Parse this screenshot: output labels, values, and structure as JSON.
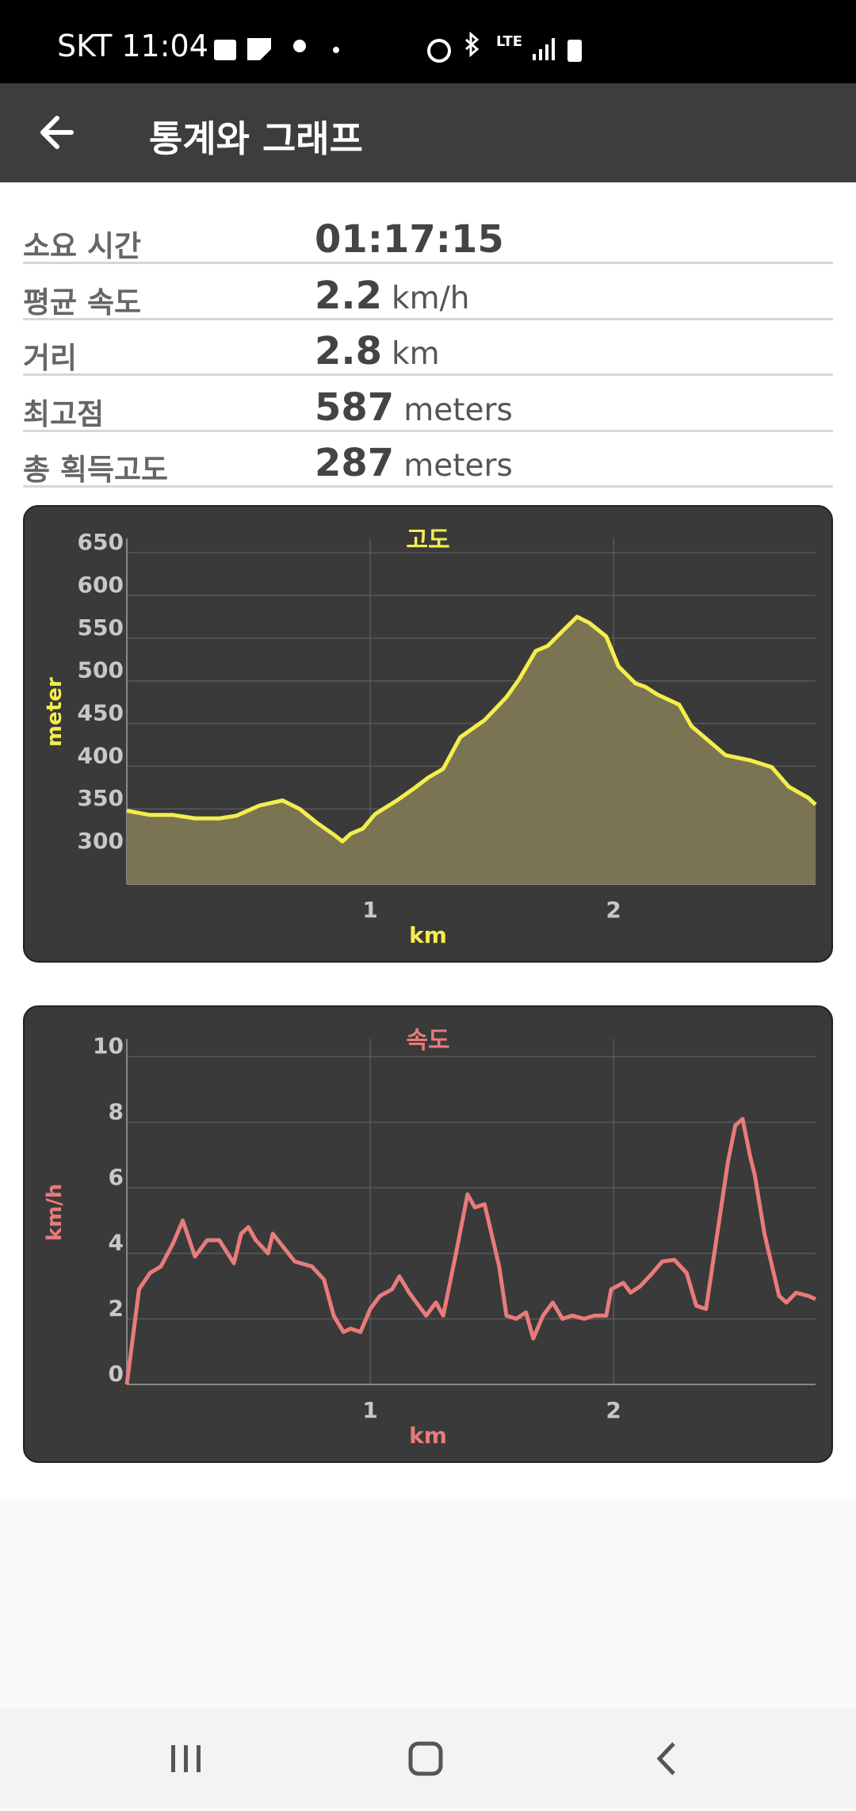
{
  "status_bar": {
    "carrier_time": "SKT 11:04",
    "network": "LTE"
  },
  "header": {
    "title": "통계와 그래프"
  },
  "stats": [
    {
      "label": "소요 시간",
      "value": "01:17:15"
    },
    {
      "label": "평균 속도",
      "value": 2.2,
      "unit": "km/h"
    },
    {
      "label": "거리",
      "value": 2.8,
      "unit": "km"
    },
    {
      "label": "최고점",
      "value": 587,
      "unit": "meters"
    },
    {
      "label": "총 획득고도",
      "value": 287,
      "unit": "meters"
    }
  ],
  "chart_data": [
    {
      "type": "area",
      "title": "고도",
      "x_label": "km",
      "y_label": "meter",
      "color": "#f4ee4c",
      "fill_color": "#7b7452",
      "grid": true,
      "x": [
        0,
        0.095,
        0.19,
        0.28,
        0.38,
        0.45,
        0.545,
        0.64,
        0.71,
        0.78,
        0.85,
        0.886,
        0.92,
        0.97,
        1.02,
        1.11,
        1.18,
        1.24,
        1.3,
        1.37,
        1.47,
        1.56,
        1.61,
        1.68,
        1.73,
        1.8,
        1.85,
        1.9,
        1.97,
        2.02,
        2.09,
        2.13,
        2.18,
        2.27,
        2.32,
        2.39,
        2.46,
        2.56,
        2.65,
        2.72,
        2.8,
        2.83
      ],
      "values": [
        348,
        343,
        343,
        339,
        339,
        342,
        354,
        360,
        350,
        334,
        320,
        312,
        321,
        327,
        344,
        360,
        374,
        387,
        397,
        434,
        454,
        481,
        501,
        535,
        541,
        561,
        575,
        568,
        552,
        517,
        497,
        493,
        484,
        472,
        447,
        430,
        413,
        407,
        399,
        376,
        363,
        355
      ],
      "xlim": [
        0,
        2.83
      ],
      "xticks": [
        1,
        2
      ],
      "ylim": [
        262,
        665
      ],
      "yticks": [
        300,
        350,
        400,
        450,
        500,
        550,
        600,
        650
      ]
    },
    {
      "type": "line",
      "title": "속도",
      "x_label": "km",
      "y_label": "km/h",
      "color": "#e97b7b",
      "grid": true,
      "x": [
        0,
        0.05,
        0.095,
        0.14,
        0.19,
        0.23,
        0.28,
        0.33,
        0.38,
        0.44,
        0.47,
        0.5,
        0.53,
        0.58,
        0.6,
        0.69,
        0.76,
        0.81,
        0.85,
        0.89,
        0.92,
        0.96,
        1.0,
        1.04,
        1.09,
        1.12,
        1.16,
        1.19,
        1.23,
        1.27,
        1.3,
        1.35,
        1.4,
        1.43,
        1.47,
        1.53,
        1.56,
        1.6,
        1.64,
        1.67,
        1.71,
        1.75,
        1.79,
        1.83,
        1.88,
        1.92,
        1.97,
        1.99,
        2.04,
        2.07,
        2.11,
        2.16,
        2.2,
        2.25,
        2.3,
        2.34,
        2.38,
        2.42,
        2.47,
        2.5,
        2.53,
        2.56,
        2.58,
        2.62,
        2.68,
        2.71,
        2.75,
        2.8,
        2.83
      ],
      "values": [
        0,
        2.9,
        3.4,
        3.6,
        4.3,
        5.0,
        3.9,
        4.4,
        4.4,
        3.7,
        4.6,
        4.8,
        4.4,
        4.0,
        4.6,
        3.75,
        3.6,
        3.2,
        2.1,
        1.6,
        1.7,
        1.6,
        2.3,
        2.7,
        2.9,
        3.3,
        2.8,
        2.5,
        2.1,
        2.5,
        2.1,
        3.9,
        5.8,
        5.4,
        5.5,
        3.6,
        2.1,
        2.0,
        2.2,
        1.4,
        2.1,
        2.5,
        2.0,
        2.1,
        2.0,
        2.1,
        2.1,
        2.9,
        3.1,
        2.8,
        3.0,
        3.4,
        3.75,
        3.8,
        3.4,
        2.4,
        2.3,
        4.3,
        6.8,
        7.9,
        8.1,
        7.0,
        6.4,
        4.6,
        2.7,
        2.5,
        2.8,
        2.7,
        2.6
      ],
      "xlim": [
        0,
        2.83
      ],
      "xticks": [
        1,
        2
      ],
      "ylim": [
        0,
        10.5
      ],
      "yticks": [
        0,
        2,
        4,
        6,
        8,
        10
      ]
    }
  ]
}
